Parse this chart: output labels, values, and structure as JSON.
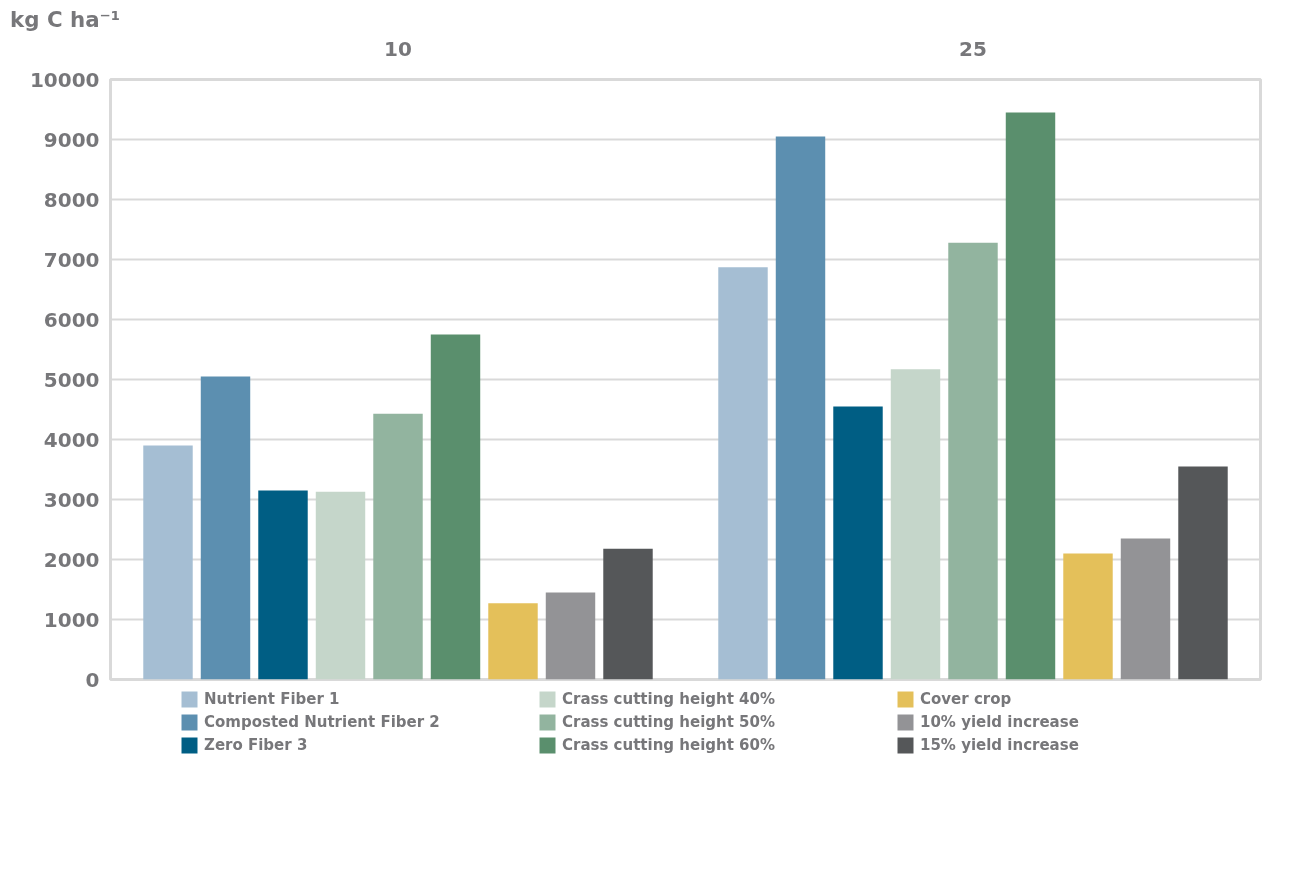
{
  "chart_data": {
    "type": "bar",
    "ylabel": "kg C ha⁻¹",
    "categories": [
      "10",
      "25"
    ],
    "series": [
      {
        "name": "Nutrient Fiber 1",
        "color": "#a5bed3",
        "values": [
          3900,
          6870
        ]
      },
      {
        "name": "Composted Nutrient Fiber 2",
        "color": "#5c8fb0",
        "values": [
          5050,
          9050
        ]
      },
      {
        "name": "Zero Fiber 3",
        "color": "#005e84",
        "values": [
          3150,
          4550
        ]
      },
      {
        "name": "Crass cutting height 40%",
        "color": "#c5d6ca",
        "values": [
          3130,
          5170
        ]
      },
      {
        "name": "Crass cutting height 50%",
        "color": "#92b49f",
        "values": [
          4430,
          7280
        ]
      },
      {
        "name": "Crass cutting height 60%",
        "color": "#5a8f6d",
        "values": [
          5750,
          9450
        ]
      },
      {
        "name": "Cover crop",
        "color": "#e4c05a",
        "values": [
          1270,
          2100
        ]
      },
      {
        "name": "10% yield increase",
        "color": "#939396",
        "values": [
          1450,
          2350
        ]
      },
      {
        "name": "15% yield increase",
        "color": "#555759",
        "values": [
          2180,
          3550
        ]
      }
    ],
    "ylim": [
      0,
      10000
    ],
    "yticks": [
      0,
      1000,
      2000,
      3000,
      4000,
      5000,
      6000,
      7000,
      8000,
      9000,
      10000
    ],
    "grid": "y",
    "legend": "bottom"
  }
}
